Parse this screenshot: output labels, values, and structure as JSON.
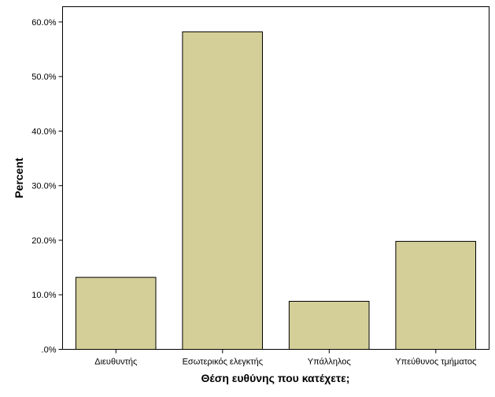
{
  "chart_data": {
    "type": "bar",
    "title": "",
    "xlabel": "Θέση ευθύνης που κατέχετε;",
    "ylabel": "Percent",
    "categories": [
      "Διευθυντής",
      "Εσωτερικός ελεγκτής",
      "Υπάλληλος",
      "Υπεύθυνος τμήματος"
    ],
    "values": [
      13.2,
      58.2,
      8.8,
      19.8
    ],
    "ylim": [
      0,
      62.8
    ],
    "yticks": [
      0,
      10,
      20,
      30,
      40,
      50,
      60
    ],
    "ytick_labels": [
      ".0%",
      "10.0%",
      "20.0%",
      "30.0%",
      "40.0%",
      "50.0%",
      "60.0%"
    ],
    "grid": false,
    "legend": "none",
    "colors": {
      "bar_fill": "#d4cf98",
      "bar_stroke": "#000000",
      "axis": "#000000",
      "frame": "#000000",
      "background": "#ffffff"
    }
  }
}
